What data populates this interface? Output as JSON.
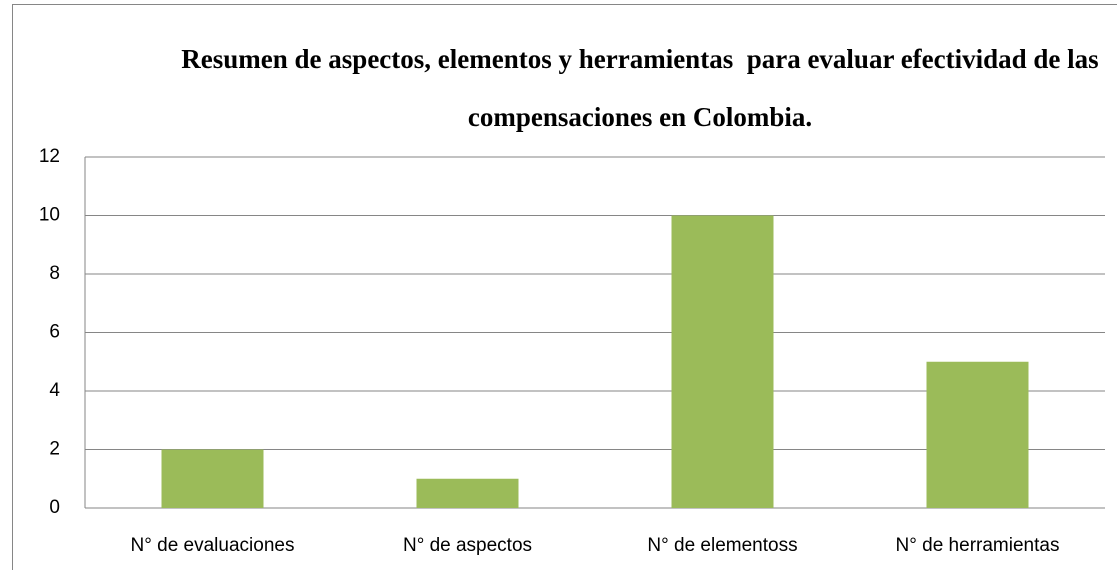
{
  "chart_data": {
    "type": "bar",
    "title": "Resumen de aspectos, elementos y herramientas  para evaluar efectividad de las compensaciones en Colombia.",
    "categories": [
      "N° de evaluaciones",
      "N° de aspectos",
      "N° de elementoss",
      "N° de herramientas"
    ],
    "values": [
      2,
      1,
      10,
      5
    ],
    "color": "#9bbb59",
    "ylim": [
      0,
      12
    ],
    "yticks": [
      0,
      2,
      4,
      6,
      8,
      10,
      12
    ],
    "grid": true
  }
}
